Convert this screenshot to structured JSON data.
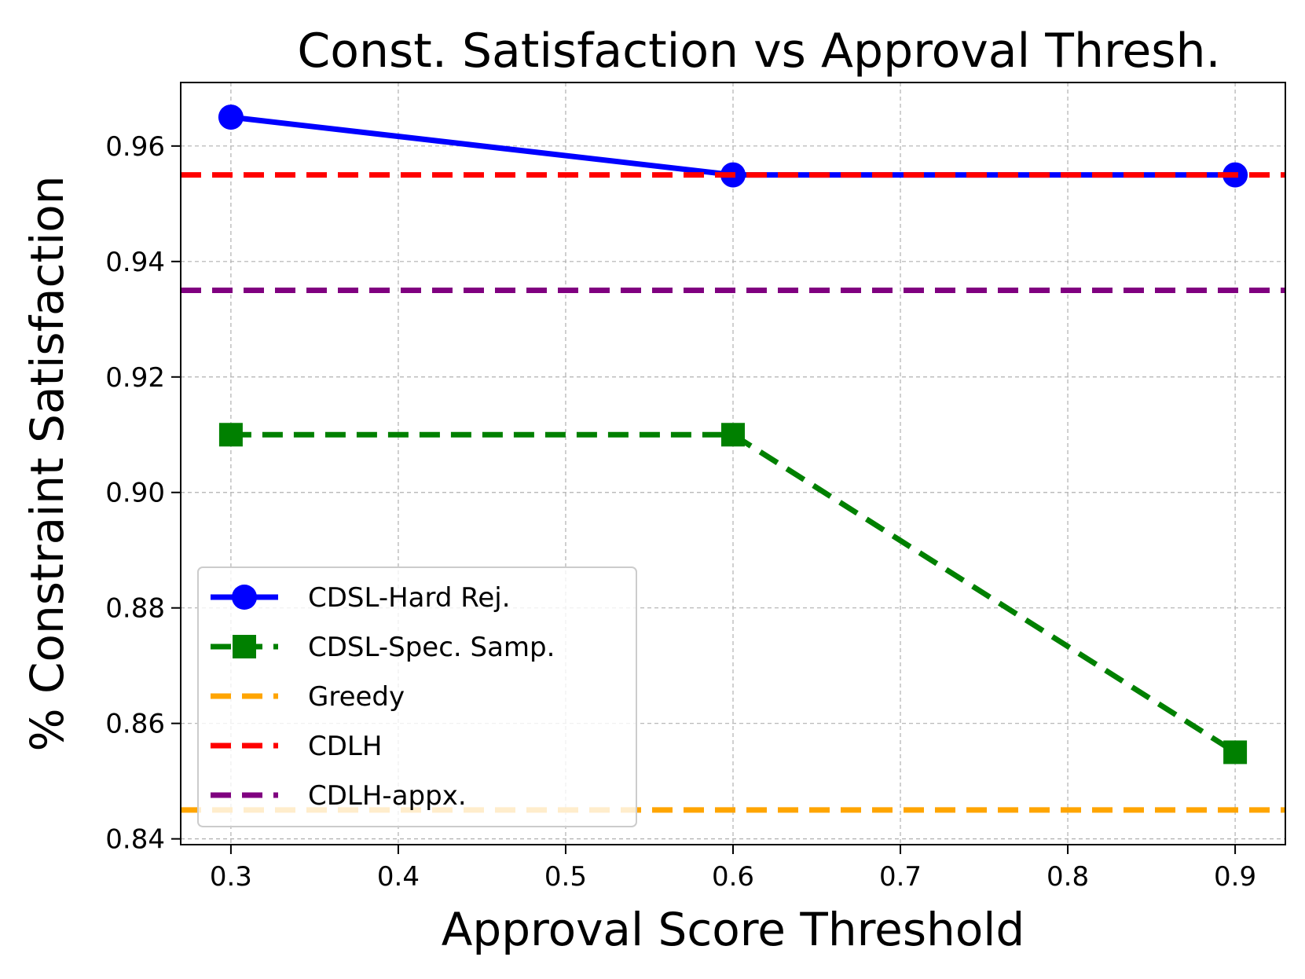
{
  "chart_data": {
    "type": "line",
    "title": "Const. Satisfaction vs Approval Thresh.",
    "xlabel": "Approval Score Threshold",
    "ylabel": "% Constraint Satisfaction",
    "xlim": [
      0.27,
      0.93
    ],
    "ylim": [
      0.839,
      0.971
    ],
    "xticks": [
      "0.3",
      "0.4",
      "0.5",
      "0.6",
      "0.7",
      "0.8",
      "0.9"
    ],
    "yticks": [
      "0.84",
      "0.86",
      "0.88",
      "0.90",
      "0.92",
      "0.94",
      "0.96"
    ],
    "grid": true,
    "legend_position": "lower-left",
    "series": [
      {
        "name": "CDSL-Hard Rej.",
        "kind": "line",
        "x": [
          0.3,
          0.6,
          0.9
        ],
        "values": [
          0.965,
          0.955,
          0.955
        ],
        "color": "#0000ff",
        "marker": "circle",
        "dash": "solid"
      },
      {
        "name": "CDSL-Spec. Samp.",
        "kind": "line",
        "x": [
          0.3,
          0.6,
          0.9
        ],
        "values": [
          0.91,
          0.91,
          0.855
        ],
        "color": "#008000",
        "marker": "square",
        "dash": "dashed"
      },
      {
        "name": "Greedy",
        "kind": "hline",
        "value": 0.845,
        "color": "#ffa500",
        "dash": "dashed"
      },
      {
        "name": "CDLH",
        "kind": "hline",
        "value": 0.955,
        "color": "#ff0000",
        "dash": "dashed"
      },
      {
        "name": "CDLH-appx.",
        "kind": "hline",
        "value": 0.935,
        "color": "#800080",
        "dash": "dashed"
      }
    ]
  }
}
